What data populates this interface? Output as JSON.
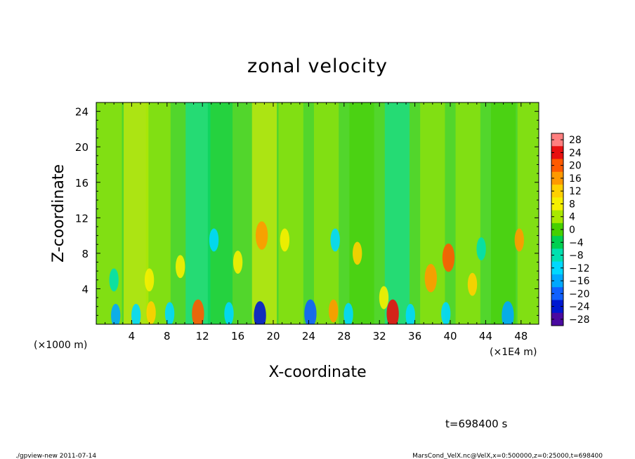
{
  "chart_data": {
    "type": "heatmap",
    "title": "zonal velocity",
    "xlabel": "X-coordinate",
    "ylabel": "Z-coordinate",
    "x_unit": "(×1E4 m)",
    "y_unit": "(×1000 m)",
    "xlim": [
      0,
      50
    ],
    "ylim": [
      0,
      25
    ],
    "x_ticks": [
      4,
      8,
      12,
      16,
      20,
      24,
      28,
      32,
      36,
      40,
      44,
      48
    ],
    "y_ticks": [
      4,
      8,
      12,
      16,
      20,
      24
    ],
    "x_tick_labels": [
      "4",
      "8",
      "12",
      "16",
      "20",
      "24",
      "28",
      "32",
      "36",
      "40",
      "44",
      "48"
    ],
    "y_tick_labels": [
      "4",
      "8",
      "12",
      "16",
      "20",
      "24"
    ],
    "colorbar": {
      "levels": [
        28,
        24,
        20,
        16,
        12,
        8,
        4,
        0,
        -4,
        -8,
        -12,
        -16,
        -20,
        -24,
        -28
      ],
      "labels": [
        "28",
        "24",
        "20",
        "16",
        "12",
        "8",
        "4",
        "0",
        "−4",
        "−8",
        "−12",
        "−16",
        "−20",
        "−24",
        "−28"
      ],
      "colors": [
        "#ff7f7f",
        "#e81010",
        "#ff5a00",
        "#ff9900",
        "#ffd000",
        "#f6f000",
        "#a8e800",
        "#46d000",
        "#00d050",
        "#00e0b0",
        "#00d8ff",
        "#00a8ff",
        "#1060ff",
        "#0018d0",
        "#4a0aa0"
      ],
      "range": [
        -30,
        30
      ]
    },
    "time_label": "t=698400 s",
    "footer_left": "./gpview-new   2011-07-14",
    "footer_right": "MarsCond_VelX.nc@VelX,x=0:500000,z=0:25000,t=698400",
    "columns": [
      {
        "x": 1.5,
        "v": 3
      },
      {
        "x": 4.5,
        "v": 7
      },
      {
        "x": 7,
        "v": 2
      },
      {
        "x": 11.5,
        "v": -8
      },
      {
        "x": 14,
        "v": -4
      },
      {
        "x": 19,
        "v": 9
      },
      {
        "x": 22,
        "v": 2
      },
      {
        "x": 26,
        "v": 4
      },
      {
        "x": 30,
        "v": 0
      },
      {
        "x": 34,
        "v": -7
      },
      {
        "x": 38,
        "v": 2
      },
      {
        "x": 42,
        "v": 4
      },
      {
        "x": 46,
        "v": 1
      },
      {
        "x": 49,
        "v": 5
      }
    ],
    "cells": [
      {
        "x": 18.7,
        "z": 10,
        "v": 17
      },
      {
        "x": 39.8,
        "z": 7.5,
        "v": 19
      },
      {
        "x": 37.8,
        "z": 5.2,
        "v": 16
      },
      {
        "x": 29.5,
        "z": 8,
        "v": 13
      },
      {
        "x": 47.8,
        "z": 9.5,
        "v": 14
      },
      {
        "x": 33.5,
        "z": 1.2,
        "v": 22
      },
      {
        "x": 11.5,
        "z": 1.2,
        "v": 20
      },
      {
        "x": 18.5,
        "z": 1,
        "v": -26
      },
      {
        "x": 24.2,
        "z": 1.2,
        "v": -20
      },
      {
        "x": 26.8,
        "z": 1.5,
        "v": 15
      },
      {
        "x": 4.5,
        "z": 1,
        "v": -14
      },
      {
        "x": 8.3,
        "z": 1.2,
        "v": -12
      },
      {
        "x": 15,
        "z": 1.2,
        "v": -14
      },
      {
        "x": 28.5,
        "z": 1.1,
        "v": -12
      },
      {
        "x": 35.5,
        "z": 1,
        "v": -14
      },
      {
        "x": 39.5,
        "z": 1.2,
        "v": -12
      },
      {
        "x": 46.5,
        "z": 1,
        "v": -18
      },
      {
        "x": 2,
        "z": 5,
        "v": -10
      },
      {
        "x": 13.3,
        "z": 9.5,
        "v": -11
      },
      {
        "x": 27,
        "z": 9.5,
        "v": -11
      },
      {
        "x": 42.5,
        "z": 4.5,
        "v": 12
      },
      {
        "x": 6,
        "z": 5,
        "v": 9
      },
      {
        "x": 21.3,
        "z": 9.5,
        "v": 9
      },
      {
        "x": 43.5,
        "z": 8.5,
        "v": -8
      },
      {
        "x": 9.5,
        "z": 6.5,
        "v": 8
      },
      {
        "x": 16,
        "z": 7,
        "v": 9
      },
      {
        "x": 32.5,
        "z": 3,
        "v": 9
      },
      {
        "x": 2.2,
        "z": 1,
        "v": -15
      },
      {
        "x": 6.2,
        "z": 1.3,
        "v": 12
      }
    ]
  }
}
